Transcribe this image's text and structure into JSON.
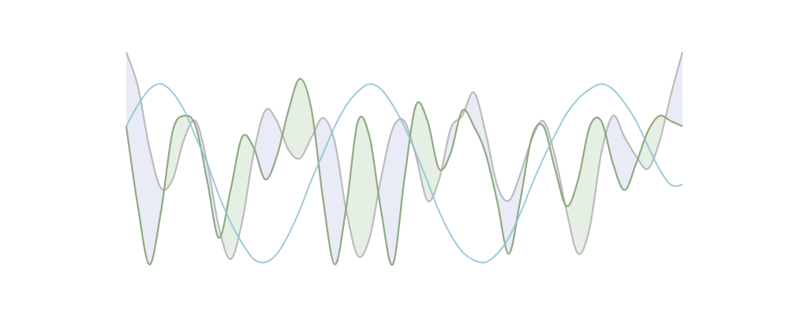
{
  "chart_data": {
    "type": "line",
    "title": "",
    "xlabel": "",
    "ylabel": "",
    "grid": false,
    "legend": "none",
    "axes_visible": false,
    "xlim": [
      0,
      4
    ],
    "ylim": [
      -1.12,
      1.12
    ],
    "x": [
      0,
      0.0833,
      0.1667,
      0.25,
      0.3333,
      0.4167,
      0.5,
      0.5833,
      0.6667,
      0.75,
      0.8333,
      0.9167,
      1.0,
      1.0833,
      1.1667,
      1.25,
      1.3333,
      1.4167,
      1.5,
      1.5833,
      1.6667,
      1.75,
      1.8333,
      1.9167,
      2.0,
      2.0833,
      2.1667,
      2.25,
      2.3333,
      2.4167,
      2.5,
      2.5833,
      2.6667,
      2.75,
      2.8333,
      2.9167,
      3.0,
      3.0833,
      3.1667,
      3.25,
      3.3333,
      3.4167,
      3.5,
      3.5833,
      3.6667,
      3.75,
      3.8333,
      3.9167,
      4.0
    ],
    "series": [
      {
        "color": "#a8a8a8",
        "values": [
          1.0,
          0.68,
          0.1,
          -0.28,
          -0.2,
          0.18,
          0.35,
          -0.05,
          -0.65,
          -0.95,
          -0.6,
          0.05,
          0.45,
          0.35,
          0.08,
          0.0,
          0.2,
          0.38,
          0.15,
          -0.5,
          -0.92,
          -0.75,
          -0.18,
          0.28,
          0.35,
          0.02,
          -0.4,
          -0.2,
          0.28,
          0.4,
          0.62,
          0.25,
          -0.25,
          -0.4,
          -0.15,
          0.18,
          0.35,
          0.02,
          -0.5,
          -0.9,
          -0.65,
          0.05,
          0.4,
          0.2,
          0.02,
          -0.1,
          0.15,
          0.6,
          1.0
        ]
      },
      {
        "color": "#88a67a",
        "values": [
          0.3,
          -0.45,
          -1.0,
          -0.5,
          0.25,
          0.4,
          0.3,
          -0.22,
          -0.75,
          -0.3,
          0.2,
          0.1,
          -0.2,
          0.02,
          0.45,
          0.75,
          0.45,
          -0.4,
          -1.0,
          -0.45,
          0.35,
          0.2,
          -0.5,
          -1.0,
          -0.2,
          0.5,
          0.35,
          -0.1,
          0.05,
          0.45,
          0.3,
          0.05,
          -0.4,
          -0.9,
          -0.4,
          0.2,
          0.3,
          -0.1,
          -0.45,
          -0.2,
          0.3,
          0.35,
          -0.05,
          -0.3,
          -0.05,
          0.25,
          0.4,
          0.35,
          0.3
        ]
      },
      {
        "color": "#8cc2d4",
        "values": [
          0.3,
          0.5,
          0.65,
          0.7,
          0.62,
          0.45,
          0.2,
          -0.05,
          -0.35,
          -0.6,
          -0.8,
          -0.95,
          -0.98,
          -0.9,
          -0.72,
          -0.48,
          -0.2,
          0.05,
          0.3,
          0.5,
          0.63,
          0.7,
          0.65,
          0.5,
          0.3,
          0.05,
          -0.22,
          -0.5,
          -0.72,
          -0.88,
          -0.96,
          -0.98,
          -0.9,
          -0.75,
          -0.52,
          -0.25,
          0.0,
          0.22,
          0.42,
          0.56,
          0.65,
          0.7,
          0.65,
          0.52,
          0.35,
          0.12,
          -0.1,
          -0.25,
          -0.25
        ]
      }
    ]
  }
}
